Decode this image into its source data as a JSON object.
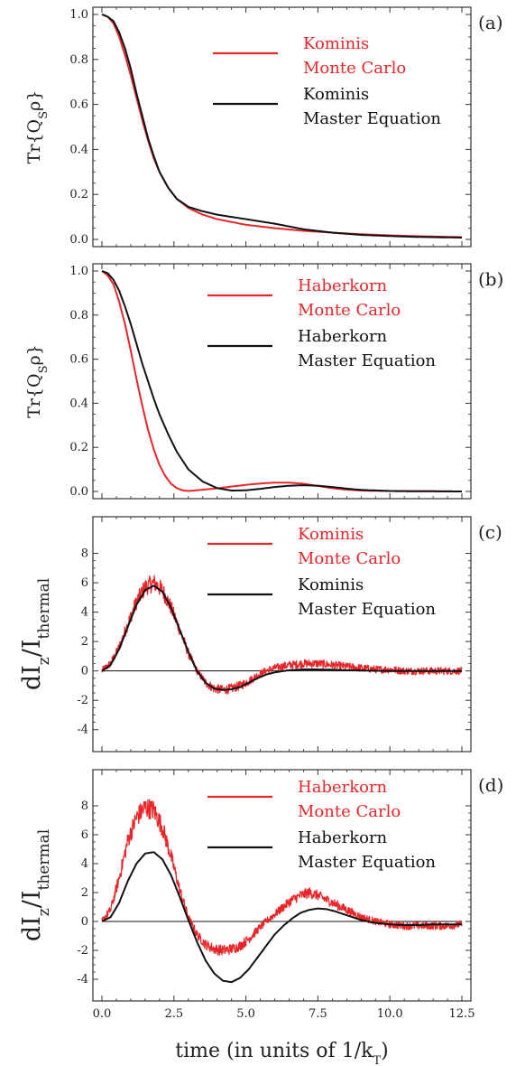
{
  "chart_data": [
    {
      "type": "line",
      "panel_label": "(a)",
      "ylabel": {
        "main": "Tr{Q",
        "sub": "S",
        "tail": "ρ}"
      },
      "xlim": [
        0,
        12.5
      ],
      "ylim": [
        0,
        1.0
      ],
      "y_ticks": [
        0.0,
        0.2,
        0.4,
        0.6,
        0.8,
        1.0
      ],
      "y_tick_labels": [
        "0.0",
        "0.2",
        "0.4",
        "0.6",
        "0.8",
        "1.0"
      ],
      "zero_line": false,
      "legend_position": "top-right",
      "series": [
        {
          "name": "Kominis Monte Carlo",
          "legend_lines": [
            "Kominis",
            "Monte Carlo"
          ],
          "color": "#e8262a",
          "x": [
            0,
            0.2,
            0.4,
            0.6,
            0.8,
            1.0,
            1.2,
            1.4,
            1.6,
            1.8,
            2.0,
            2.3,
            2.6,
            3.0,
            3.5,
            4.0,
            5.0,
            6.0,
            7.0,
            8.0,
            9.0,
            10.0,
            11.0,
            12.5
          ],
          "y": [
            1.0,
            0.99,
            0.96,
            0.9,
            0.82,
            0.73,
            0.63,
            0.53,
            0.44,
            0.36,
            0.3,
            0.23,
            0.18,
            0.14,
            0.11,
            0.09,
            0.065,
            0.05,
            0.038,
            0.03,
            0.023,
            0.018,
            0.014,
            0.01
          ]
        },
        {
          "name": "Kominis Master Equation",
          "legend_lines": [
            "Kominis",
            "Master Equation"
          ],
          "color": "#111111",
          "x": [
            0,
            0.2,
            0.4,
            0.6,
            0.8,
            1.0,
            1.2,
            1.4,
            1.6,
            1.8,
            2.0,
            2.3,
            2.6,
            3.0,
            3.5,
            4.0,
            5.0,
            6.0,
            7.0,
            8.0,
            9.0,
            10.0,
            11.0,
            12.5
          ],
          "y": [
            1.0,
            0.99,
            0.97,
            0.92,
            0.85,
            0.76,
            0.65,
            0.55,
            0.45,
            0.37,
            0.3,
            0.23,
            0.18,
            0.145,
            0.125,
            0.11,
            0.09,
            0.07,
            0.045,
            0.03,
            0.02,
            0.015,
            0.011,
            0.008
          ]
        }
      ]
    },
    {
      "type": "line",
      "panel_label": "(b)",
      "ylabel": {
        "main": "Tr{Q",
        "sub": "S",
        "tail": "ρ}"
      },
      "xlim": [
        0,
        12.5
      ],
      "ylim": [
        0,
        1.0
      ],
      "y_ticks": [
        0.0,
        0.2,
        0.4,
        0.6,
        0.8,
        1.0
      ],
      "y_tick_labels": [
        "0.0",
        "0.2",
        "0.4",
        "0.6",
        "0.8",
        "1.0"
      ],
      "zero_line": false,
      "legend_position": "top-right",
      "series": [
        {
          "name": "Haberkorn Monte Carlo",
          "legend_lines": [
            "Haberkorn",
            "Monte Carlo"
          ],
          "color": "#e8262a",
          "x": [
            0,
            0.2,
            0.4,
            0.6,
            0.8,
            1.0,
            1.2,
            1.4,
            1.6,
            1.8,
            2.0,
            2.2,
            2.4,
            2.6,
            2.8,
            3.0,
            3.2,
            3.5,
            4.0,
            4.5,
            5.0,
            5.5,
            6.0,
            6.5,
            7.0,
            7.5,
            8.0,
            8.5,
            9.0,
            10.0,
            11.0,
            12.5
          ],
          "y": [
            1.0,
            0.98,
            0.94,
            0.86,
            0.76,
            0.64,
            0.51,
            0.39,
            0.28,
            0.19,
            0.12,
            0.07,
            0.035,
            0.015,
            0.005,
            0.002,
            0.004,
            0.008,
            0.014,
            0.022,
            0.03,
            0.036,
            0.04,
            0.04,
            0.035,
            0.025,
            0.015,
            0.008,
            0.004,
            0.002,
            0.001,
            0.0
          ]
        },
        {
          "name": "Haberkorn Master Equation",
          "legend_lines": [
            "Haberkorn",
            "Master Equation"
          ],
          "color": "#111111",
          "x": [
            0,
            0.2,
            0.4,
            0.6,
            0.8,
            1.0,
            1.2,
            1.4,
            1.6,
            1.8,
            2.0,
            2.3,
            2.6,
            3.0,
            3.5,
            4.0,
            4.5,
            5.0,
            5.5,
            6.0,
            6.5,
            7.0,
            7.5,
            8.0,
            8.5,
            9.0,
            10.0,
            11.0,
            12.5
          ],
          "y": [
            1.0,
            0.99,
            0.96,
            0.91,
            0.84,
            0.76,
            0.67,
            0.58,
            0.5,
            0.42,
            0.35,
            0.26,
            0.18,
            0.1,
            0.045,
            0.015,
            0.004,
            0.005,
            0.012,
            0.02,
            0.026,
            0.028,
            0.026,
            0.02,
            0.013,
            0.007,
            0.002,
            0.001,
            0.0
          ]
        }
      ]
    },
    {
      "type": "line",
      "panel_label": "(c)",
      "ylabel": {
        "main": "dI",
        "sub": "z",
        "mid": "/I",
        "sub2": "thermal"
      },
      "xlim": [
        0,
        12.5
      ],
      "ylim": [
        -5,
        10
      ],
      "y_ticks": [
        -4,
        -2,
        0,
        2,
        4,
        6,
        8
      ],
      "y_tick_labels": [
        "-4",
        "-2",
        "0",
        "2",
        "4",
        "6",
        "8"
      ],
      "zero_line": true,
      "legend_position": "top-right",
      "series": [
        {
          "name": "Kominis Monte Carlo",
          "legend_lines": [
            "Kominis",
            "Monte Carlo"
          ],
          "color": "#e8262a",
          "noisy": true,
          "x": [
            0,
            0.3,
            0.6,
            0.9,
            1.2,
            1.5,
            1.8,
            2.1,
            2.4,
            2.7,
            3.0,
            3.3,
            3.6,
            3.9,
            4.2,
            4.5,
            4.8,
            5.1,
            5.4,
            5.7,
            6.0,
            6.5,
            7.0,
            7.5,
            8.0,
            8.5,
            9.0,
            9.5,
            10.0,
            10.5,
            11.0,
            11.5,
            12.0,
            12.5
          ],
          "y": [
            0,
            0.5,
            1.6,
            3.2,
            4.7,
            5.7,
            6.0,
            5.5,
            4.3,
            2.8,
            1.2,
            0.0,
            -0.8,
            -1.2,
            -1.3,
            -1.2,
            -1.0,
            -0.7,
            -0.3,
            0.0,
            0.2,
            0.4,
            0.5,
            0.5,
            0.4,
            0.3,
            0.2,
            0.1,
            0.1,
            0.0,
            0.0,
            0.0,
            0.0,
            0.0
          ]
        },
        {
          "name": "Kominis Master Equation",
          "legend_lines": [
            "Kominis",
            "Master Equation"
          ],
          "color": "#111111",
          "x": [
            0,
            0.3,
            0.6,
            0.9,
            1.2,
            1.5,
            1.8,
            2.1,
            2.4,
            2.7,
            3.0,
            3.3,
            3.6,
            3.9,
            4.2,
            4.5,
            4.8,
            5.1,
            5.4,
            5.7,
            6.0,
            6.5,
            7.0,
            7.5,
            8.0,
            8.5,
            9.0,
            9.5,
            10.0,
            10.5,
            11.0,
            11.5,
            12.0,
            12.5
          ],
          "y": [
            0,
            0.4,
            1.5,
            3.0,
            4.5,
            5.5,
            5.8,
            5.4,
            4.3,
            2.8,
            1.3,
            0.0,
            -0.8,
            -1.2,
            -1.3,
            -1.25,
            -1.1,
            -0.8,
            -0.5,
            -0.25,
            -0.1,
            0.05,
            0.1,
            0.1,
            0.08,
            0.05,
            0.03,
            0.01,
            0.0,
            0.0,
            0.0,
            0.0,
            0.0,
            0.0
          ]
        }
      ]
    },
    {
      "type": "line",
      "panel_label": "(d)",
      "ylabel": {
        "main": "dI",
        "sub": "z",
        "mid": "/I",
        "sub2": "thermal"
      },
      "xlim": [
        0,
        12.5
      ],
      "ylim": [
        -5,
        10
      ],
      "y_ticks": [
        -4,
        -2,
        0,
        2,
        4,
        6,
        8
      ],
      "y_tick_labels": [
        "-4",
        "-2",
        "0",
        "2",
        "4",
        "6",
        "8"
      ],
      "x_ticks": [
        0,
        2.5,
        5,
        7.5,
        10,
        12.5
      ],
      "x_tick_labels": [
        "0.0",
        "2.5",
        "5.0",
        "7.5",
        "10.0",
        "12.5"
      ],
      "xlabel": "time (in units of 1/k",
      "xlabel_sub": "T",
      "xlabel_tail": ")",
      "zero_line": true,
      "legend_position": "top-right",
      "series": [
        {
          "name": "Haberkorn Monte Carlo",
          "legend_lines": [
            "Haberkorn",
            "Monte Carlo"
          ],
          "color": "#e8262a",
          "noisy": true,
          "x": [
            0,
            0.3,
            0.6,
            0.9,
            1.2,
            1.5,
            1.8,
            2.1,
            2.4,
            2.7,
            3.0,
            3.3,
            3.6,
            3.9,
            4.2,
            4.5,
            4.8,
            5.1,
            5.4,
            5.7,
            6.0,
            6.3,
            6.6,
            6.9,
            7.2,
            7.5,
            7.8,
            8.1,
            8.4,
            8.7,
            9.0,
            9.5,
            10.0,
            10.5,
            11.0,
            11.5,
            12.0,
            12.5
          ],
          "y": [
            0,
            0.8,
            3.0,
            5.6,
            7.2,
            7.9,
            7.7,
            6.5,
            4.5,
            2.2,
            0.3,
            -0.9,
            -1.6,
            -1.9,
            -2.0,
            -1.9,
            -1.7,
            -1.2,
            -0.6,
            0.0,
            0.5,
            1.0,
            1.5,
            1.8,
            2.0,
            1.8,
            1.5,
            1.2,
            0.9,
            0.6,
            0.3,
            0.0,
            -0.2,
            -0.3,
            -0.3,
            -0.3,
            -0.3,
            -0.2
          ]
        },
        {
          "name": "Haberkorn Master Equation",
          "legend_lines": [
            "Haberkorn",
            "Master Equation"
          ],
          "color": "#111111",
          "x": [
            0,
            0.3,
            0.6,
            0.9,
            1.2,
            1.5,
            1.8,
            2.1,
            2.4,
            2.7,
            3.0,
            3.3,
            3.6,
            3.9,
            4.2,
            4.5,
            4.8,
            5.1,
            5.4,
            5.7,
            6.0,
            6.3,
            6.6,
            6.9,
            7.2,
            7.5,
            7.8,
            8.1,
            8.4,
            8.7,
            9.0,
            9.5,
            10.0,
            10.5,
            11.0,
            11.5,
            12.0,
            12.5
          ],
          "y": [
            0,
            0.3,
            1.3,
            2.8,
            4.0,
            4.7,
            4.8,
            4.3,
            3.2,
            1.7,
            0.1,
            -1.4,
            -2.7,
            -3.6,
            -4.1,
            -4.2,
            -3.9,
            -3.3,
            -2.5,
            -1.7,
            -0.9,
            -0.3,
            0.2,
            0.6,
            0.8,
            0.9,
            0.85,
            0.7,
            0.5,
            0.3,
            0.1,
            -0.1,
            -0.2,
            -0.25,
            -0.25,
            -0.2,
            -0.2,
            -0.2
          ]
        }
      ]
    }
  ]
}
